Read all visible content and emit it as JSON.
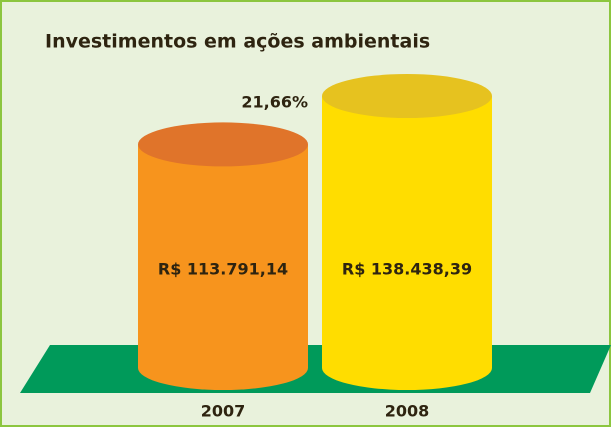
{
  "chart_data": {
    "type": "cylinder",
    "title": "Investimentos em ações ambientais",
    "categories": [
      "2007",
      "2008"
    ],
    "values": [
      113791.14,
      138438.39
    ],
    "value_labels": [
      "R$ 113.791,14",
      "R$ 138.438,39"
    ],
    "colors": [
      "#f7941d",
      "#ffdd00"
    ],
    "top_colors": [
      "#e0742a",
      "#e6c21f"
    ],
    "annotation": "21,66%",
    "floor_color": "#009a5a"
  }
}
